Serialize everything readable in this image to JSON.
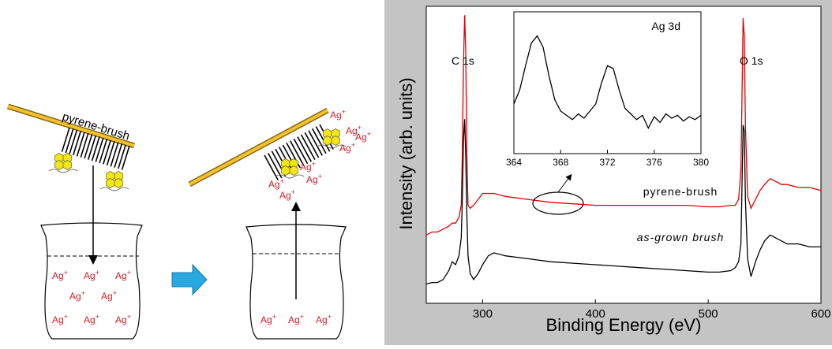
{
  "diagram": {
    "brush_label": "pyrene-brush",
    "ion": {
      "symbol": "Ag",
      "charge": "+"
    }
  },
  "chart_data": [
    {
      "type": "line",
      "xlabel": "Binding Energy (eV)",
      "ylabel": "Intensity (arb. units)",
      "xlim": [
        250,
        600
      ],
      "xticks": [
        300,
        400,
        500,
        600
      ],
      "ylim": [
        0,
        100
      ],
      "annotations": [
        "C 1s",
        "O 1s"
      ],
      "x": [
        250,
        255,
        260,
        265,
        270,
        273,
        276,
        279,
        281,
        282,
        283,
        284,
        285,
        286,
        287,
        289,
        292,
        296,
        300,
        305,
        310,
        320,
        340,
        360,
        380,
        400,
        420,
        440,
        460,
        480,
        500,
        510,
        520,
        524,
        527,
        529,
        530,
        531,
        532,
        533,
        535,
        538,
        542,
        546,
        550,
        555,
        560,
        565,
        570,
        580,
        590,
        600
      ],
      "series": [
        {
          "name": "pyrene-brush",
          "color": "#e00000",
          "values": [
            23,
            24,
            24,
            25,
            26,
            27,
            27,
            29,
            33,
            50,
            80,
            97,
            85,
            50,
            33,
            32,
            33,
            35,
            37,
            37,
            37,
            36,
            35,
            34,
            33.5,
            33,
            33,
            33,
            33,
            33,
            32.5,
            32.5,
            33,
            33,
            35,
            45,
            70,
            96,
            90,
            60,
            36,
            32,
            35,
            38,
            40,
            42,
            41,
            40,
            40,
            39,
            39,
            38
          ]
        },
        {
          "name": "as-grown brush",
          "color": "#000000",
          "values": [
            6.5,
            7,
            7,
            8,
            11,
            14,
            13,
            16,
            22,
            35,
            55,
            62,
            50,
            30,
            16,
            10,
            8,
            10,
            13,
            16,
            17,
            16,
            15,
            14,
            13.5,
            13,
            12.5,
            12,
            11.5,
            11,
            10.5,
            10.5,
            11,
            12,
            14,
            20,
            40,
            60,
            58,
            35,
            15,
            9,
            14,
            18,
            21,
            23,
            22,
            21,
            20,
            20,
            19,
            19
          ]
        }
      ]
    },
    {
      "type": "line",
      "title": "Ag 3d",
      "xlim": [
        364,
        380
      ],
      "xticks": [
        364,
        368,
        372,
        376,
        380
      ],
      "ylim": [
        0,
        100
      ],
      "x": [
        364,
        364.5,
        365,
        365.5,
        366,
        366.5,
        367,
        367.5,
        368,
        368.5,
        369,
        369.5,
        370,
        370.5,
        371,
        371.5,
        372,
        372.5,
        373,
        373.5,
        374,
        374.5,
        375,
        375.5,
        376,
        376.5,
        377,
        377.5,
        378,
        378.5,
        379,
        379.5,
        380
      ],
      "series": [
        {
          "color": "#000000",
          "values": [
            35,
            45,
            62,
            78,
            83,
            75,
            55,
            38,
            30,
            27,
            24,
            28,
            25,
            30,
            35,
            50,
            62,
            60,
            45,
            32,
            28,
            24,
            27,
            18,
            26,
            22,
            28,
            25,
            27,
            23,
            26,
            24,
            27
          ]
        }
      ]
    }
  ]
}
